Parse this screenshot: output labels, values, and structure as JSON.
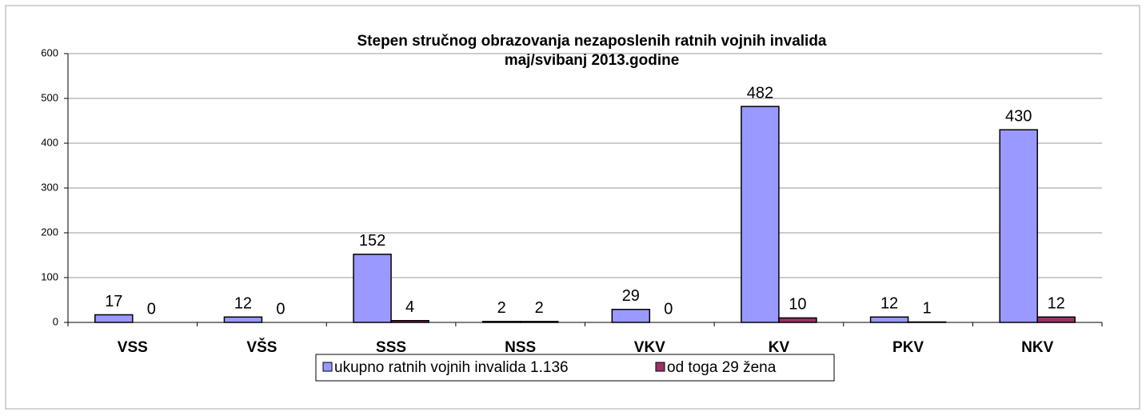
{
  "chart_data": {
    "type": "bar",
    "title": "Stepen stručnog obrazovanja nezaposlenih ratnih vojnih invalida",
    "subtitle": "maj/svibanj 2013.godine",
    "categories": [
      "VSS",
      "VŠS",
      "SSS",
      "NSS",
      "VKV",
      "KV",
      "PKV",
      "NKV"
    ],
    "series": [
      {
        "name": "ukupno ratnih vojnih invalida 1.136",
        "color": "#9999ff",
        "values": [
          17,
          12,
          152,
          2,
          29,
          482,
          12,
          430
        ]
      },
      {
        "name": "od toga 29 žena",
        "color": "#993366",
        "values": [
          0,
          0,
          4,
          2,
          0,
          10,
          1,
          12
        ]
      }
    ],
    "ylim": [
      0,
      600
    ],
    "yticks": [
      0,
      100,
      200,
      300,
      400,
      500,
      600
    ],
    "grid": true,
    "legend": "bottom"
  }
}
